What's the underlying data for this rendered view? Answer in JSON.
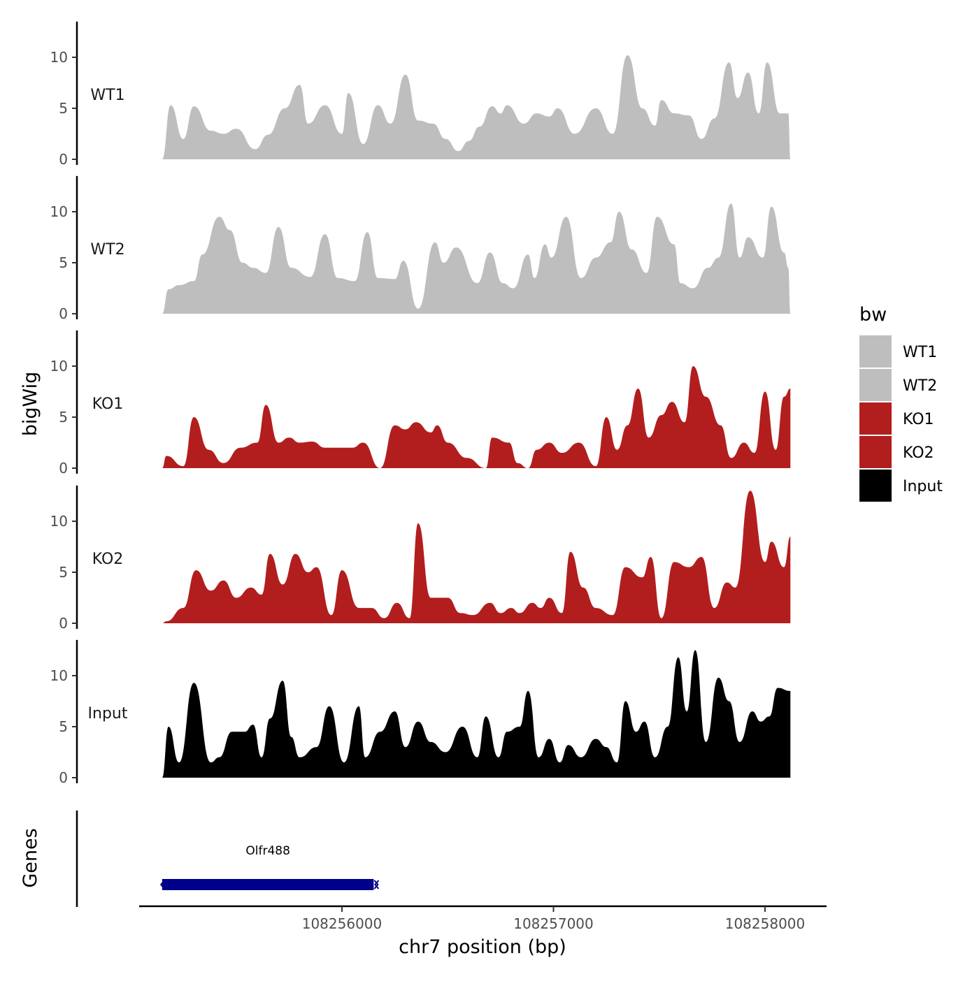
{
  "chart_data": {
    "type": "area",
    "title": "",
    "xlabel": "chr7 position (bp)",
    "ylabel": "bigWig",
    "genes_panel_label": "Genes",
    "xlim": [
      108255100,
      108258300
    ],
    "data_xrange": [
      108255150,
      108258120
    ],
    "ylim": [
      0,
      13.5
    ],
    "yticks": [
      0,
      5,
      10
    ],
    "xticks": [
      108256000,
      108257000,
      108258000
    ],
    "legend": {
      "title": "bw",
      "entries": [
        {
          "name": "WT1",
          "color": "#bebebe"
        },
        {
          "name": "WT2",
          "color": "#bebebe"
        },
        {
          "name": "KO1",
          "color": "#b21e1e"
        },
        {
          "name": "KO2",
          "color": "#b21e1e"
        },
        {
          "name": "Input",
          "color": "#000000"
        }
      ]
    },
    "series": [
      {
        "name": "WT1",
        "color": "#bebebe",
        "peaks": [
          [
            108255190,
            5.3
          ],
          [
            108255250,
            2
          ],
          [
            108255300,
            5.2
          ],
          [
            108255380,
            2.8
          ],
          [
            108255440,
            2.5
          ],
          [
            108255500,
            3
          ],
          [
            108255590,
            1
          ],
          [
            108255650,
            2.4
          ],
          [
            108255730,
            5
          ],
          [
            108255800,
            7.3
          ],
          [
            108255840,
            3.5
          ],
          [
            108255920,
            5.3
          ],
          [
            108256000,
            2.5
          ],
          [
            108256030,
            6.5
          ],
          [
            108256100,
            1.5
          ],
          [
            108256170,
            5.3
          ],
          [
            108256230,
            3.5
          ],
          [
            108256300,
            8.3
          ],
          [
            108256360,
            3.8
          ],
          [
            108256430,
            3.5
          ],
          [
            108256490,
            2
          ],
          [
            108256550,
            0.8
          ],
          [
            108256600,
            1.8
          ],
          [
            108256650,
            3.2
          ],
          [
            108256710,
            5.2
          ],
          [
            108256750,
            4.5
          ],
          [
            108256780,
            5.3
          ],
          [
            108256860,
            3.5
          ],
          [
            108256920,
            4.5
          ],
          [
            108256980,
            4.2
          ],
          [
            108257020,
            5
          ],
          [
            108257100,
            2.5
          ],
          [
            108257200,
            5
          ],
          [
            108257280,
            2.5
          ],
          [
            108257350,
            10.2
          ],
          [
            108257420,
            5
          ],
          [
            108257480,
            3.3
          ],
          [
            108257510,
            5.8
          ],
          [
            108257570,
            4.5
          ],
          [
            108257640,
            4.3
          ],
          [
            108257700,
            2
          ],
          [
            108257760,
            4
          ],
          [
            108257830,
            9.5
          ],
          [
            108257870,
            6
          ],
          [
            108257920,
            8.5
          ],
          [
            108257970,
            4.5
          ],
          [
            108258010,
            9.5
          ],
          [
            108258070,
            4.5
          ],
          [
            108258110,
            4.5
          ]
        ]
      },
      {
        "name": "WT2",
        "color": "#bebebe",
        "peaks": [
          [
            108255180,
            2.4
          ],
          [
            108255230,
            2.8
          ],
          [
            108255300,
            3.2
          ],
          [
            108255340,
            5.8
          ],
          [
            108255420,
            9.5
          ],
          [
            108255470,
            8.2
          ],
          [
            108255530,
            5
          ],
          [
            108255580,
            4.5
          ],
          [
            108255640,
            4
          ],
          [
            108255700,
            8.5
          ],
          [
            108255760,
            4.5
          ],
          [
            108255850,
            3.6
          ],
          [
            108255920,
            7.8
          ],
          [
            108255980,
            3.5
          ],
          [
            108256060,
            3.2
          ],
          [
            108256120,
            8
          ],
          [
            108256170,
            3.5
          ],
          [
            108256250,
            3.4
          ],
          [
            108256290,
            5.2
          ],
          [
            108256360,
            0.5
          ],
          [
            108256440,
            7
          ],
          [
            108256480,
            5
          ],
          [
            108256540,
            6.5
          ],
          [
            108256640,
            3
          ],
          [
            108256700,
            6
          ],
          [
            108256760,
            3
          ],
          [
            108256810,
            2.5
          ],
          [
            108256880,
            5.8
          ],
          [
            108256910,
            3.5
          ],
          [
            108256960,
            6.8
          ],
          [
            108256990,
            5.5
          ],
          [
            108257060,
            9.5
          ],
          [
            108257130,
            3.5
          ],
          [
            108257200,
            5.5
          ],
          [
            108257270,
            7
          ],
          [
            108257310,
            10
          ],
          [
            108257370,
            6.3
          ],
          [
            108257440,
            4
          ],
          [
            108257490,
            9.5
          ],
          [
            108257570,
            6.8
          ],
          [
            108257600,
            3
          ],
          [
            108257660,
            2.5
          ],
          [
            108257730,
            4.5
          ],
          [
            108257780,
            5.5
          ],
          [
            108257840,
            10.8
          ],
          [
            108257880,
            5.5
          ],
          [
            108257920,
            7.5
          ],
          [
            108257990,
            5.5
          ],
          [
            108258030,
            10.5
          ],
          [
            108258090,
            6
          ],
          [
            108258110,
            4.5
          ]
        ]
      },
      {
        "name": "KO1",
        "color": "#b21e1e",
        "peaks": [
          [
            108255170,
            1.2
          ],
          [
            108255250,
            0.2
          ],
          [
            108255300,
            5
          ],
          [
            108255370,
            1.8
          ],
          [
            108255440,
            0.5
          ],
          [
            108255520,
            2
          ],
          [
            108255600,
            2.5
          ],
          [
            108255640,
            6.2
          ],
          [
            108255700,
            2.5
          ],
          [
            108255750,
            3
          ],
          [
            108255800,
            2.5
          ],
          [
            108255860,
            2.6
          ],
          [
            108255920,
            2
          ],
          [
            108255980,
            2
          ],
          [
            108256050,
            2
          ],
          [
            108256100,
            2.5
          ],
          [
            108256180,
            0
          ],
          [
            108256250,
            4.2
          ],
          [
            108256300,
            3.8
          ],
          [
            108256350,
            4.5
          ],
          [
            108256420,
            3.5
          ],
          [
            108256450,
            4.2
          ],
          [
            108256500,
            2.5
          ],
          [
            108256590,
            1
          ],
          [
            108256680,
            0
          ],
          [
            108256710,
            3
          ],
          [
            108256790,
            2.5
          ],
          [
            108256830,
            0.5
          ],
          [
            108256880,
            0
          ],
          [
            108256920,
            1.8
          ],
          [
            108256980,
            2.5
          ],
          [
            108257040,
            1.5
          ],
          [
            108257120,
            2.5
          ],
          [
            108257200,
            0.2
          ],
          [
            108257250,
            5
          ],
          [
            108257300,
            1.8
          ],
          [
            108257350,
            4.2
          ],
          [
            108257400,
            7.8
          ],
          [
            108257450,
            3
          ],
          [
            108257510,
            5.2
          ],
          [
            108257560,
            6.5
          ],
          [
            108257620,
            4.5
          ],
          [
            108257660,
            10
          ],
          [
            108257720,
            7
          ],
          [
            108257790,
            4.2
          ],
          [
            108257840,
            1
          ],
          [
            108257900,
            2.5
          ],
          [
            108257950,
            1.5
          ],
          [
            108258000,
            7.5
          ],
          [
            108258050,
            1.8
          ],
          [
            108258090,
            7
          ],
          [
            108258120,
            7.8
          ]
        ]
      },
      {
        "name": "KO2",
        "color": "#b21e1e",
        "peaks": [
          [
            108255170,
            0.2
          ],
          [
            108255250,
            1.5
          ],
          [
            108255310,
            5.2
          ],
          [
            108255380,
            3.2
          ],
          [
            108255440,
            4.2
          ],
          [
            108255500,
            2.5
          ],
          [
            108255570,
            3.5
          ],
          [
            108255620,
            2.8
          ],
          [
            108255660,
            6.8
          ],
          [
            108255720,
            3.8
          ],
          [
            108255780,
            6.8
          ],
          [
            108255840,
            5
          ],
          [
            108255880,
            5.5
          ],
          [
            108255950,
            0.8
          ],
          [
            108256000,
            5.2
          ],
          [
            108256080,
            1.5
          ],
          [
            108256140,
            1.5
          ],
          [
            108256200,
            0.5
          ],
          [
            108256260,
            2
          ],
          [
            108256320,
            0.5
          ],
          [
            108256360,
            9.8
          ],
          [
            108256420,
            2.5
          ],
          [
            108256500,
            2.5
          ],
          [
            108256560,
            1
          ],
          [
            108256620,
            0.8
          ],
          [
            108256700,
            2
          ],
          [
            108256750,
            1
          ],
          [
            108256800,
            1.5
          ],
          [
            108256840,
            1
          ],
          [
            108256900,
            2
          ],
          [
            108256940,
            1.5
          ],
          [
            108256980,
            2.5
          ],
          [
            108257040,
            1
          ],
          [
            108257080,
            7
          ],
          [
            108257140,
            3.5
          ],
          [
            108257200,
            1.5
          ],
          [
            108257280,
            0.8
          ],
          [
            108257340,
            5.5
          ],
          [
            108257420,
            4.5
          ],
          [
            108257460,
            6.5
          ],
          [
            108257510,
            0.5
          ],
          [
            108257570,
            6
          ],
          [
            108257640,
            5.5
          ],
          [
            108257700,
            6.5
          ],
          [
            108257760,
            1.5
          ],
          [
            108257820,
            4
          ],
          [
            108257860,
            3.5
          ],
          [
            108257930,
            13
          ],
          [
            108258000,
            6
          ],
          [
            108258030,
            8
          ],
          [
            108258090,
            5.5
          ],
          [
            108258120,
            8.5
          ]
        ]
      },
      {
        "name": "Input",
        "color": "#000000",
        "peaks": [
          [
            108255180,
            5
          ],
          [
            108255230,
            1.5
          ],
          [
            108255300,
            9.3
          ],
          [
            108255380,
            1.5
          ],
          [
            108255420,
            2
          ],
          [
            108255480,
            4.5
          ],
          [
            108255540,
            4.5
          ],
          [
            108255580,
            5.2
          ],
          [
            108255620,
            2
          ],
          [
            108255660,
            5.8
          ],
          [
            108255720,
            9.5
          ],
          [
            108255760,
            4
          ],
          [
            108255800,
            2
          ],
          [
            108255880,
            3
          ],
          [
            108255940,
            7
          ],
          [
            108256010,
            1.5
          ],
          [
            108256080,
            7
          ],
          [
            108256110,
            2
          ],
          [
            108256180,
            4.5
          ],
          [
            108256250,
            6.5
          ],
          [
            108256300,
            3
          ],
          [
            108256360,
            5.5
          ],
          [
            108256420,
            3.5
          ],
          [
            108256490,
            2.5
          ],
          [
            108256570,
            5
          ],
          [
            108256640,
            2
          ],
          [
            108256680,
            6
          ],
          [
            108256740,
            2
          ],
          [
            108256780,
            4.5
          ],
          [
            108256840,
            5
          ],
          [
            108256880,
            8.5
          ],
          [
            108256930,
            2
          ],
          [
            108256980,
            3.8
          ],
          [
            108257030,
            1.5
          ],
          [
            108257070,
            3.2
          ],
          [
            108257130,
            2
          ],
          [
            108257200,
            3.8
          ],
          [
            108257250,
            3
          ],
          [
            108257300,
            1.5
          ],
          [
            108257340,
            7.5
          ],
          [
            108257390,
            4.5
          ],
          [
            108257430,
            5.5
          ],
          [
            108257480,
            2
          ],
          [
            108257540,
            5
          ],
          [
            108257590,
            11.8
          ],
          [
            108257630,
            6.5
          ],
          [
            108257670,
            12.5
          ],
          [
            108257720,
            3.5
          ],
          [
            108257780,
            9.8
          ],
          [
            108257830,
            7.5
          ],
          [
            108257880,
            3.5
          ],
          [
            108257940,
            6.5
          ],
          [
            108257980,
            5.5
          ],
          [
            108258020,
            6
          ],
          [
            108258060,
            8.8
          ],
          [
            108258120,
            8.5
          ]
        ]
      }
    ],
    "genes": [
      {
        "name": "Olfr488",
        "start": 108255150,
        "end": 108256150,
        "strand": "-",
        "color": "#00008b"
      }
    ]
  }
}
